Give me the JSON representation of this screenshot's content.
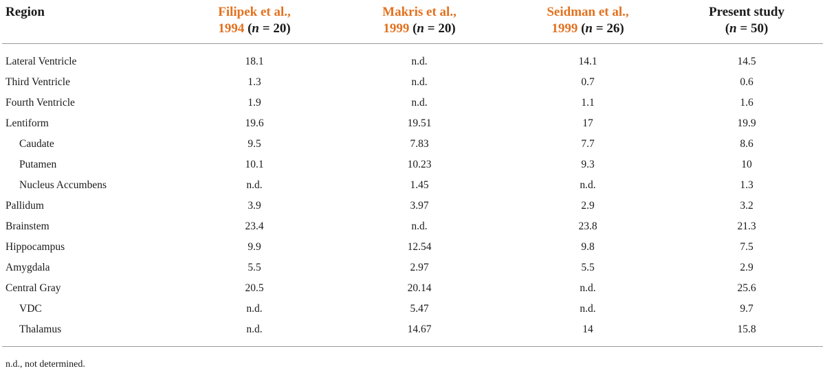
{
  "table": {
    "headers": {
      "region": "Region",
      "studies": [
        {
          "author": "Filipek et al.,",
          "year": "1994",
          "n_label": "n",
          "n_value": "= 20)"
        },
        {
          "author": "Makris et al.,",
          "year": "1999",
          "n_label": "n",
          "n_value": "= 20)"
        },
        {
          "author": "Seidman et al.,",
          "year": "1999",
          "n_label": "n",
          "n_value": "= 26)"
        }
      ],
      "present": {
        "line1": "Present study",
        "n_label": "n",
        "n_value": "= 50)"
      }
    },
    "rows": [
      {
        "region": "Lateral Ventricle",
        "sub": false,
        "values": [
          "18.1",
          "n.d.",
          "14.1",
          "14.5"
        ]
      },
      {
        "region": "Third Ventricle",
        "sub": false,
        "values": [
          "1.3",
          "n.d.",
          "0.7",
          "0.6"
        ]
      },
      {
        "region": "Fourth Ventricle",
        "sub": false,
        "values": [
          "1.9",
          "n.d.",
          "1.1",
          "1.6"
        ]
      },
      {
        "region": "Lentiform",
        "sub": false,
        "values": [
          "19.6",
          "19.51",
          "17",
          "19.9"
        ]
      },
      {
        "region": "Caudate",
        "sub": true,
        "values": [
          "9.5",
          "7.83",
          "7.7",
          "8.6"
        ]
      },
      {
        "region": "Putamen",
        "sub": true,
        "values": [
          "10.1",
          "10.23",
          "9.3",
          "10"
        ]
      },
      {
        "region": "Nucleus Accumbens",
        "sub": true,
        "values": [
          "n.d.",
          "1.45",
          "n.d.",
          "1.3"
        ]
      },
      {
        "region": "Pallidum",
        "sub": false,
        "values": [
          "3.9",
          "3.97",
          "2.9",
          "3.2"
        ]
      },
      {
        "region": "Brainstem",
        "sub": false,
        "values": [
          "23.4",
          "n.d.",
          "23.8",
          "21.3"
        ]
      },
      {
        "region": "Hippocampus",
        "sub": false,
        "values": [
          "9.9",
          "12.54",
          "9.8",
          "7.5"
        ]
      },
      {
        "region": "Amygdala",
        "sub": false,
        "values": [
          "5.5",
          "2.97",
          "5.5",
          "2.9"
        ]
      },
      {
        "region": "Central Gray",
        "sub": false,
        "values": [
          "20.5",
          "20.14",
          "n.d.",
          "25.6"
        ]
      },
      {
        "region": "VDC",
        "sub": true,
        "values": [
          "n.d.",
          "5.47",
          "n.d.",
          "9.7"
        ]
      },
      {
        "region": "Thalamus",
        "sub": true,
        "values": [
          "n.d.",
          "14.67",
          "14",
          "15.8"
        ]
      }
    ],
    "footnote": "n.d., not determined.",
    "colors": {
      "reference_link": "#e3711f",
      "rule": "#9a9a9a"
    }
  }
}
